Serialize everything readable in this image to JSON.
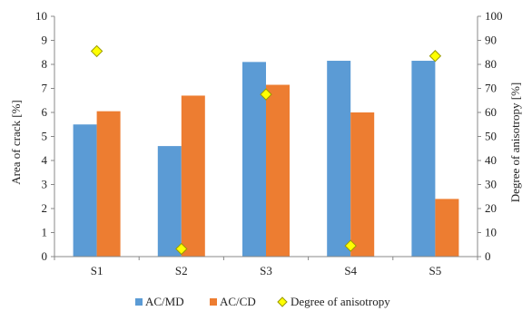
{
  "chart_data": {
    "type": "bar",
    "categories": [
      "S1",
      "S2",
      "S3",
      "S4",
      "S5"
    ],
    "series": [
      {
        "name": "AC/MD",
        "values": [
          5.5,
          4.6,
          8.1,
          8.15,
          8.15
        ],
        "color": "#5B9BD5",
        "axis": "left",
        "kind": "bar"
      },
      {
        "name": "AC/CD",
        "values": [
          6.05,
          6.7,
          7.15,
          6.0,
          2.4
        ],
        "color": "#ED7D31",
        "axis": "left",
        "kind": "bar"
      },
      {
        "name": "Degree of anisotropy",
        "values": [
          85.5,
          3.2,
          67.5,
          4.5,
          83.5
        ],
        "color": "#FFFF00",
        "axis": "right",
        "kind": "marker",
        "marker": "diamond"
      }
    ],
    "ylabel": "Area of crack [%]",
    "y2label": "Degree of anisotropy [%]",
    "ylim": [
      0,
      10
    ],
    "y2lim": [
      0,
      100
    ],
    "yticks": [
      "0",
      "1",
      "2",
      "3",
      "4",
      "5",
      "6",
      "7",
      "8",
      "9",
      "10"
    ],
    "y2ticks": [
      "0",
      "10",
      "20",
      "30",
      "40",
      "50",
      "60",
      "70",
      "80",
      "90",
      "100"
    ],
    "grid": false,
    "legend_position": "bottom"
  }
}
